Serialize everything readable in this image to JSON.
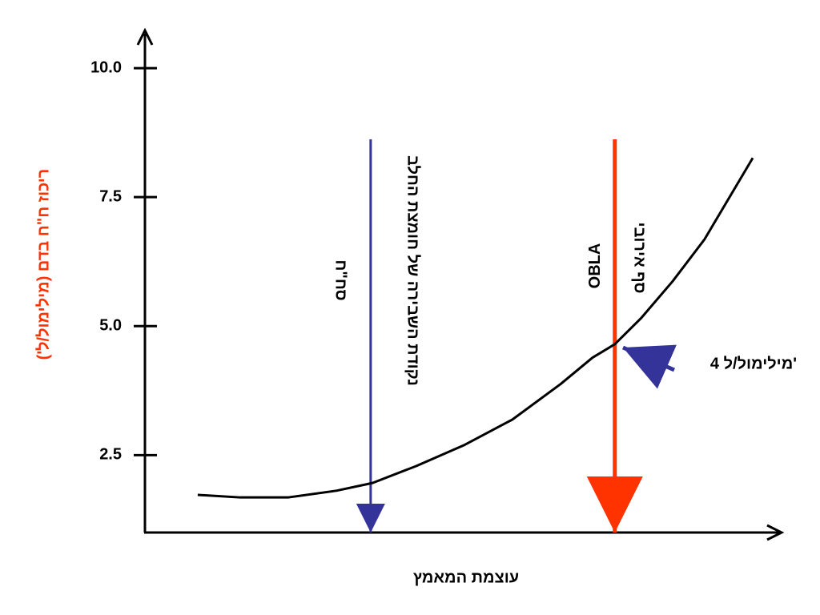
{
  "chart_data": {
    "type": "line",
    "y_label": "ריכוז ח\"ח בדם (מילימול/ל')",
    "x_label": "עוצמת המאמץ",
    "xlim": [
      0,
      100
    ],
    "ylim": [
      1,
      10.7
    ],
    "yticks": [
      {
        "value": 10,
        "label": "10.0"
      },
      7.5,
      {
        "value": 5,
        "label": "5.0"
      },
      2.5
    ],
    "series": [
      {
        "color": "#000000",
        "x": [
          8.3,
          15,
          22.5,
          30.1,
          35.8,
          42.7,
          50.3,
          57.8,
          65.4,
          70.4,
          73.9,
          78,
          83,
          88,
          95.6
        ],
        "values": [
          1.73,
          1.68,
          1.68,
          1.81,
          1.96,
          2.29,
          2.7,
          3.19,
          3.88,
          4.39,
          4.65,
          5.15,
          5.87,
          6.68,
          8.26
        ]
      }
    ],
    "markers": [
      {
        "x": 35.5,
        "color": "#333399",
        "labels": [
          "סח\"ח",
          "נקודת השבירה של חומצת החלב"
        ]
      },
      {
        "x": 73.9,
        "color": "#ff3300",
        "labels": [
          "OBLA",
          "סף אירובי"
        ]
      }
    ],
    "annotation": "4 מילימול/ל'"
  }
}
